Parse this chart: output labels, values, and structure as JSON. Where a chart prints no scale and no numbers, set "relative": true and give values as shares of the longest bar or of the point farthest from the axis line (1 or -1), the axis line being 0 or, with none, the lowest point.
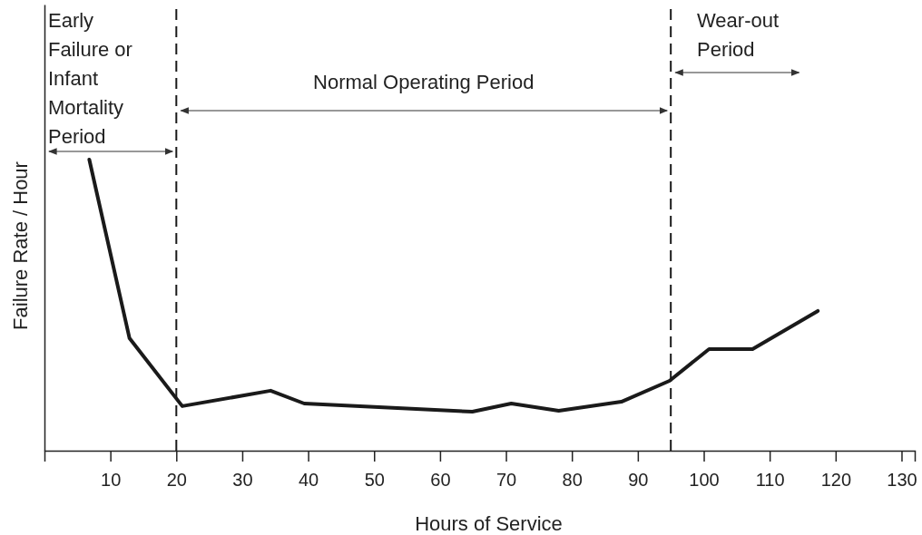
{
  "chart_data": {
    "type": "line",
    "relative": true,
    "xlabel": "Hours of Service",
    "ylabel": "Failure Rate / Hour",
    "xlim": [
      0,
      132
    ],
    "xticks": [
      10,
      20,
      30,
      40,
      50,
      60,
      70,
      80,
      90,
      100,
      110,
      120,
      130
    ],
    "series": [
      {
        "color": "#1a1a1a",
        "x": [
          6.8,
          12.9,
          20.9,
          34.3,
          39.4,
          64.9,
          70.8,
          78.0,
          87.5,
          94.8,
          100.8,
          107.4,
          117.3
        ],
        "values": [
          1,
          0.386,
          0.153,
          0.206,
          0.162,
          0.134,
          0.162,
          0.137,
          0.168,
          0.24,
          0.349,
          0.349,
          0.48
        ]
      }
    ],
    "ref_lines": [
      {
        "axis": "x",
        "value": 20,
        "line_style": "dashed",
        "color": "#1a1a1a"
      },
      {
        "axis": "x",
        "value": 95,
        "line_style": "dashed",
        "color": "#1a1a1a"
      }
    ],
    "annotations": [
      "Early Failure or Infant Mortality Period",
      "Normal Operating Period",
      "Wear-out Period"
    ],
    "marker": "none",
    "line_style": "solid",
    "grid": false
  }
}
